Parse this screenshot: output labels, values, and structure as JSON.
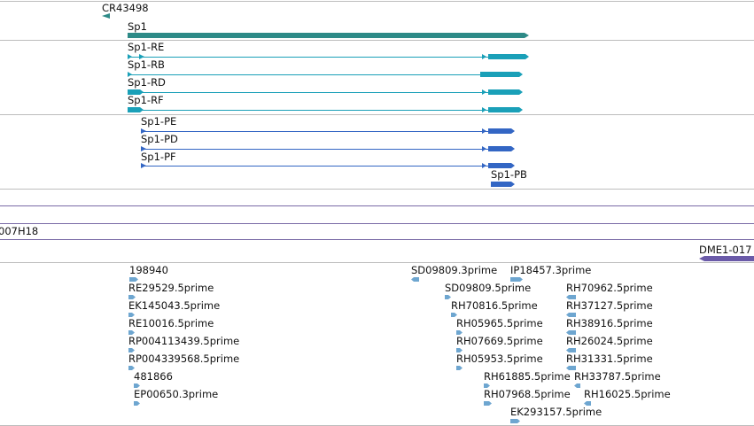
{
  "colors": {
    "divider": "#bdbdbd",
    "band": "#7a6aa6",
    "gene": "#2d8a87",
    "transcript": "#1aa0b8",
    "protein": "#3366c4",
    "est": "#6ea6d0",
    "clone": "#6a5aa8"
  },
  "tracks": {
    "gene": {
      "cr": "CR43498",
      "sp1": "Sp1"
    },
    "transcripts": [
      "Sp1-RE",
      "Sp1-RB",
      "Sp1-RD",
      "Sp1-RF"
    ],
    "proteins": [
      "Sp1-PE",
      "Sp1-PD",
      "Sp1-PF",
      "Sp1-PB"
    ],
    "clone_left": "007H18",
    "clone_right": "DME1-017",
    "ests": [
      "198940",
      "RE29529.5prime",
      "EK145043.5prime",
      "RE10016.5prime",
      "RP004113439.5prime",
      "RP004339568.5prime",
      "481866",
      "EP00650.3prime",
      "SD09809.3prime",
      "IP18457.3prime",
      "SD09809.5prime",
      "RH70962.5prime",
      "RH70816.5prime",
      "RH37127.5prime",
      "RH05965.5prime",
      "RH38916.5prime",
      "RH07669.5prime",
      "RH26024.5prime",
      "RH05953.5prime",
      "RH31331.5prime",
      "RH61885.5prime",
      "RH33787.5prime",
      "RH07968.5prime",
      "RH16025.5prime",
      "EK293157.5prime"
    ]
  }
}
